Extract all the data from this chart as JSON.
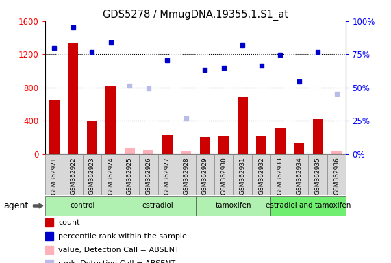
{
  "title": "GDS5278 / MmugDNA.19355.1.S1_at",
  "samples": [
    "GSM362921",
    "GSM362922",
    "GSM362923",
    "GSM362924",
    "GSM362925",
    "GSM362926",
    "GSM362927",
    "GSM362928",
    "GSM362929",
    "GSM362930",
    "GSM362931",
    "GSM362932",
    "GSM362933",
    "GSM362934",
    "GSM362935",
    "GSM362936"
  ],
  "count_values": [
    650,
    1330,
    390,
    820,
    null,
    null,
    230,
    null,
    200,
    220,
    680,
    220,
    310,
    130,
    420,
    null
  ],
  "count_absent": [
    null,
    null,
    null,
    null,
    70,
    50,
    null,
    30,
    null,
    null,
    null,
    null,
    null,
    null,
    null,
    30
  ],
  "rank_values": [
    1280,
    1520,
    1230,
    1340,
    null,
    null,
    1130,
    null,
    1010,
    1040,
    1310,
    1060,
    1190,
    870,
    1230,
    null
  ],
  "rank_absent": [
    null,
    null,
    null,
    null,
    820,
    790,
    null,
    430,
    null,
    null,
    null,
    null,
    null,
    null,
    null,
    720
  ],
  "groups": [
    {
      "label": "control",
      "start": 0,
      "end": 3
    },
    {
      "label": "estradiol",
      "start": 4,
      "end": 7
    },
    {
      "label": "tamoxifen",
      "start": 8,
      "end": 11
    },
    {
      "label": "estradiol and tamoxifen",
      "start": 12,
      "end": 15
    }
  ],
  "ylim_left": [
    0,
    1600
  ],
  "ylim_right": [
    0,
    100
  ],
  "yticks_left": [
    0,
    400,
    800,
    1200,
    1600
  ],
  "yticks_right": [
    0,
    25,
    50,
    75,
    100
  ],
  "bar_color": "#cc0000",
  "bar_absent_color": "#ffb0b8",
  "rank_color": "#0000cc",
  "rank_absent_color": "#b8bce8",
  "plot_bg": "#ffffff",
  "sample_box_bg": "#d8d8d8",
  "group_colors": [
    "#b0f0b0",
    "#b0f0b0",
    "#b0f0b0",
    "#70ee70"
  ]
}
